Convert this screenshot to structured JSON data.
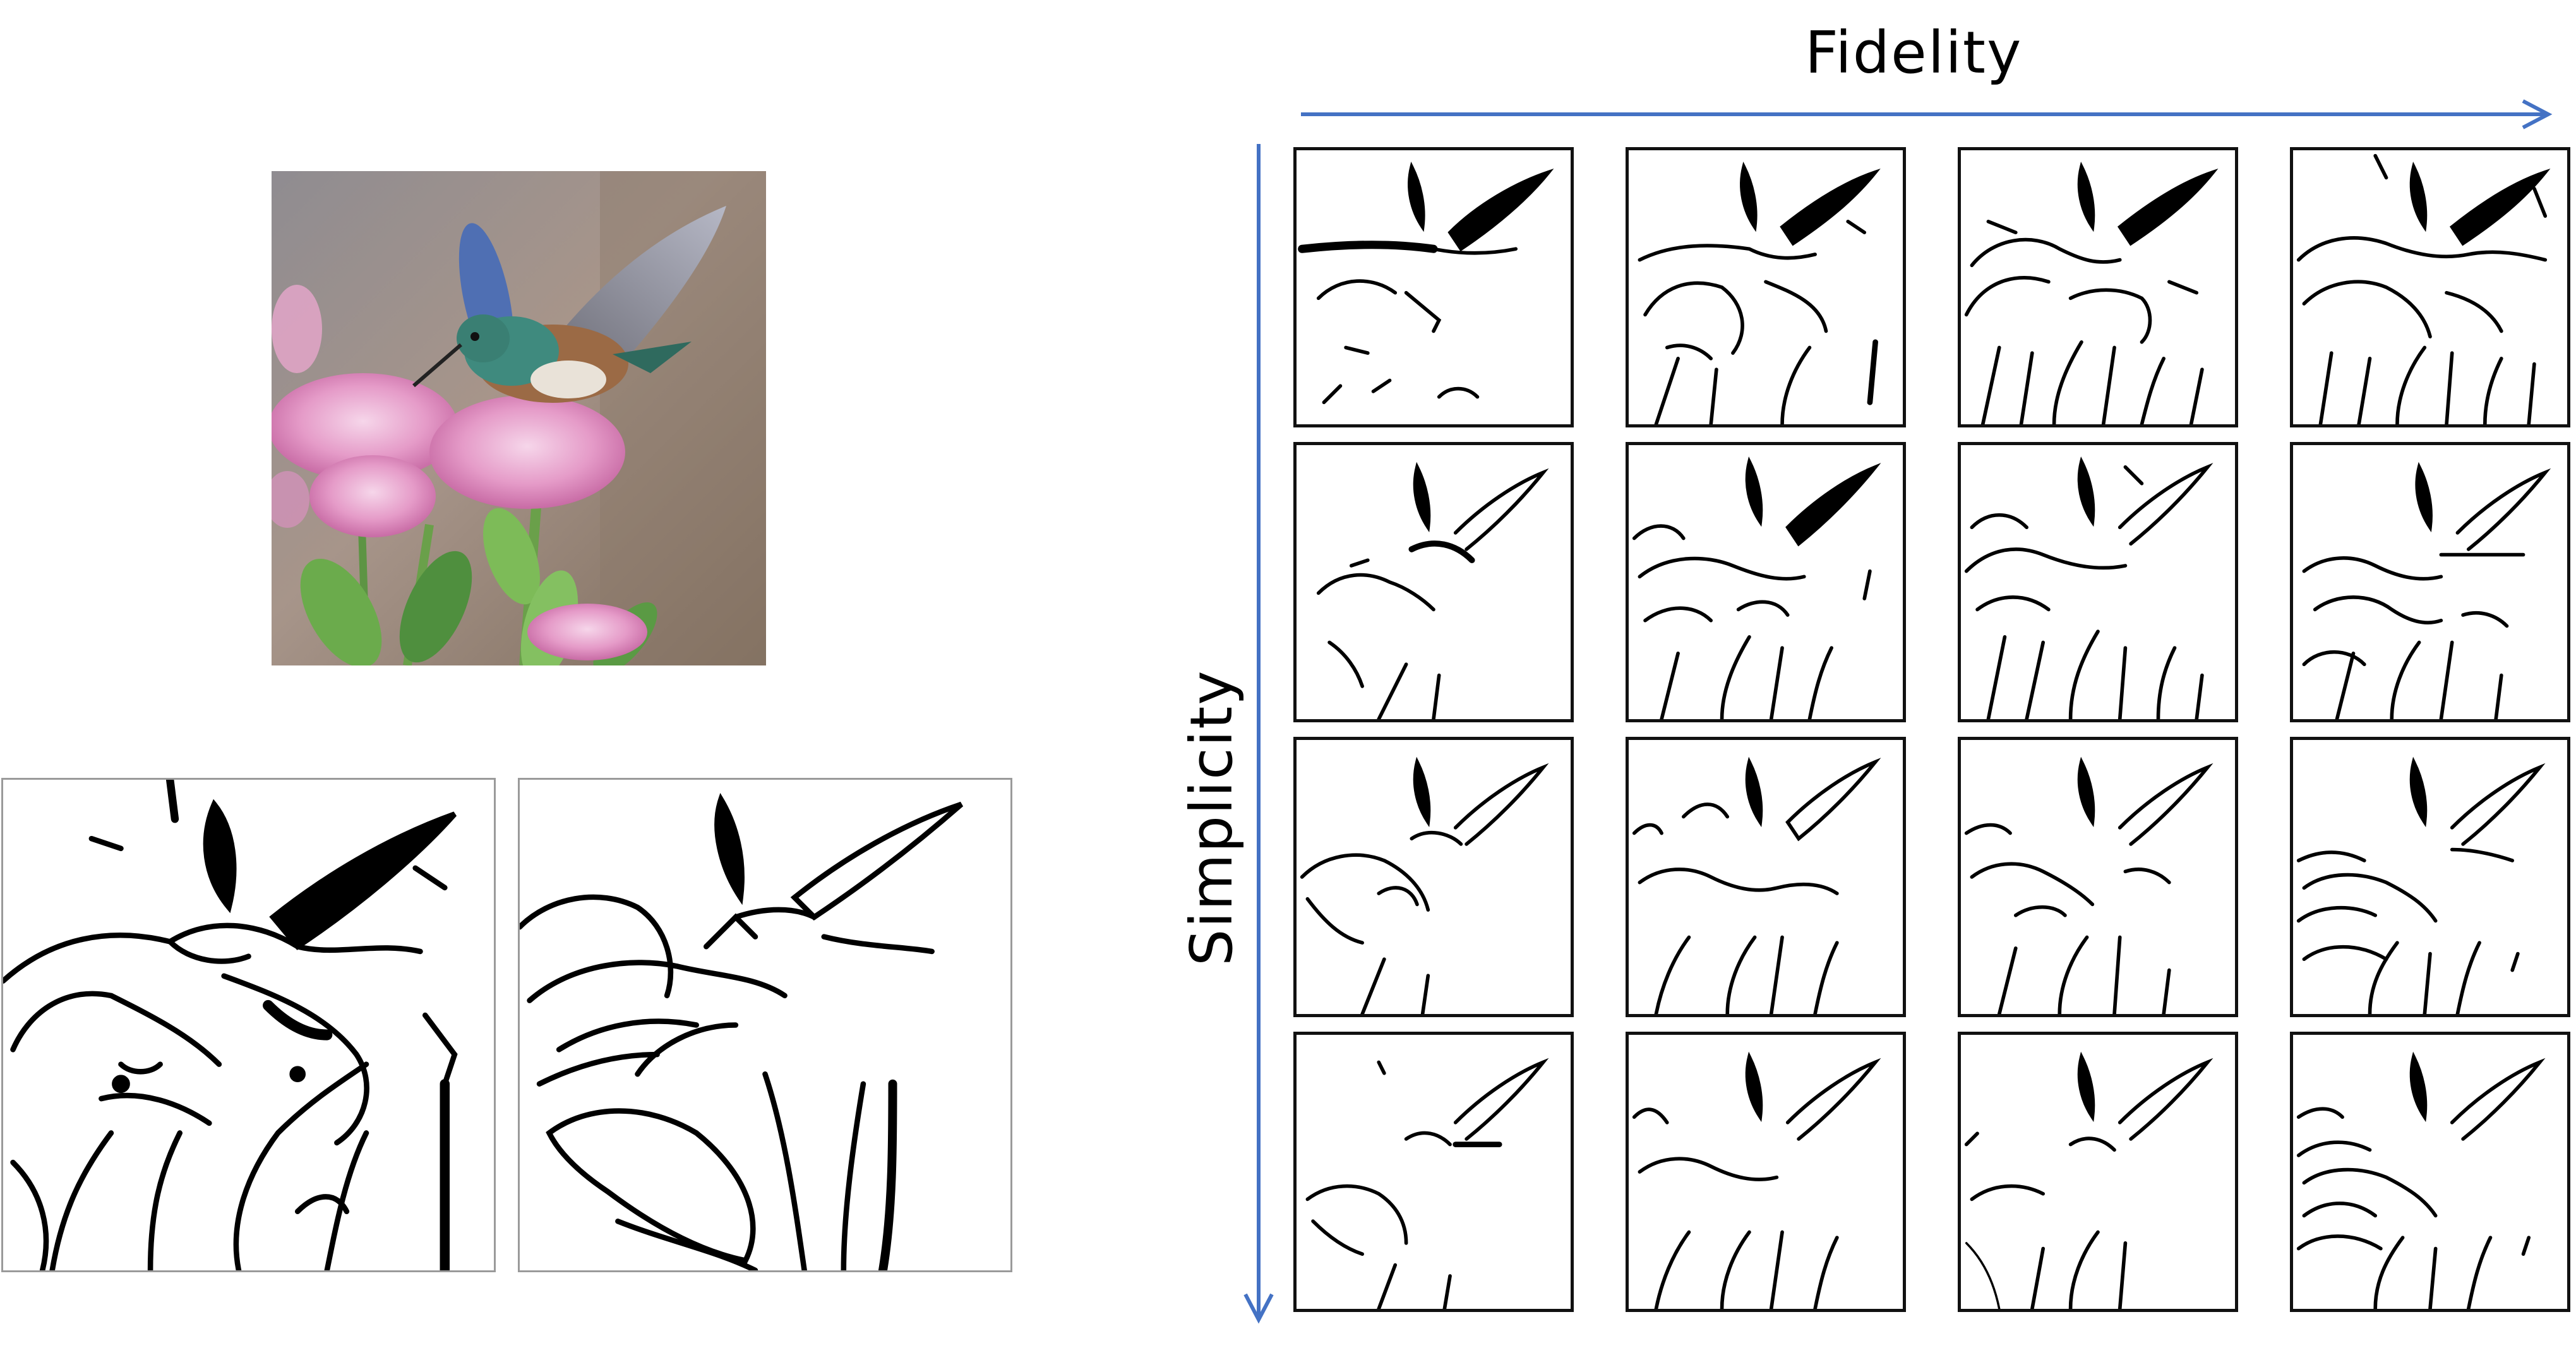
{
  "axes": {
    "x_label": "Fidelity",
    "y_label": "Simplicity",
    "arrow_color": "#4472c4"
  },
  "grid": {
    "rows": 4,
    "columns": 4
  }
}
